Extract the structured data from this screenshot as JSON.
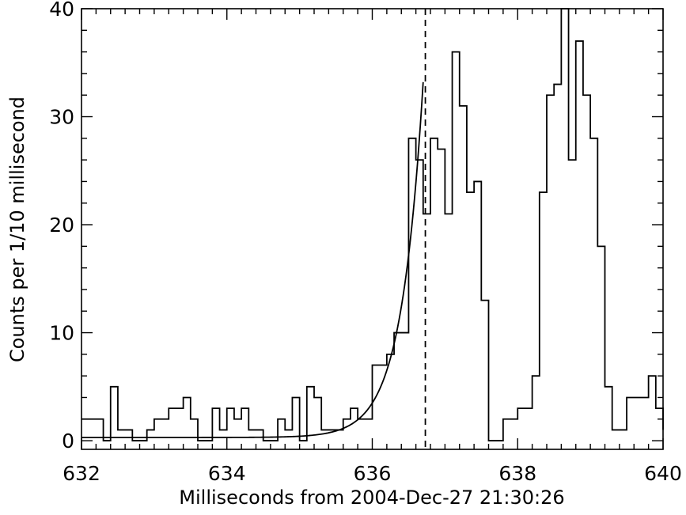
{
  "chart_data": {
    "type": "step-histogram",
    "xlabel": "Milliseconds from 2004-Dec-27 21:30:26",
    "ylabel": "Counts per 1/10 millisecond",
    "xlim": [
      632,
      640
    ],
    "ylim": [
      -0.8,
      40
    ],
    "x_ticks": [
      632,
      634,
      636,
      638,
      640
    ],
    "y_ticks": [
      0,
      10,
      20,
      30,
      40
    ],
    "bin_width": 0.1,
    "histogram": {
      "bin_edges_start": 632.0,
      "counts": [
        2,
        2,
        2,
        0,
        5,
        1,
        1,
        0,
        0,
        1,
        2,
        2,
        3,
        3,
        4,
        2,
        0,
        0,
        3,
        1,
        3,
        2,
        3,
        1,
        1,
        0,
        0,
        2,
        1,
        4,
        0,
        5,
        4,
        1,
        1,
        1,
        2,
        3,
        2,
        2,
        7,
        7,
        8,
        10,
        10,
        28,
        26,
        21,
        28,
        27,
        21,
        36,
        31,
        23,
        24,
        13,
        0,
        0,
        2,
        2,
        3,
        3,
        6,
        23,
        32,
        33,
        40,
        26,
        37,
        32,
        28,
        18,
        5,
        1,
        1,
        4,
        4,
        4,
        6,
        3,
        1
      ]
    },
    "fit_curve": {
      "description": "exponential rise",
      "x_start": 632.0,
      "x_end": 636.7,
      "baseline": 0.3,
      "amplitude_at_end": 33.2,
      "e_folding_ms": 0.3
    },
    "vertical_line": {
      "x": 636.73,
      "style": "dashed"
    },
    "grid": false
  }
}
